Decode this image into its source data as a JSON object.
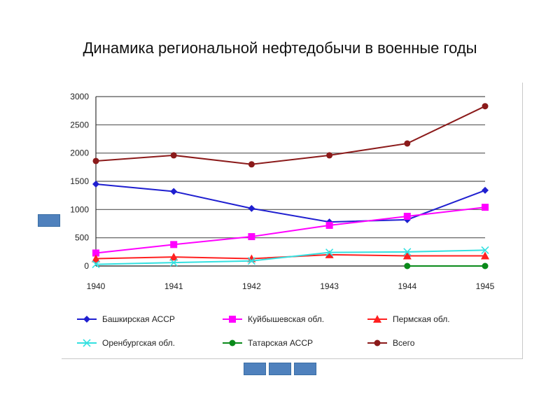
{
  "slide": {
    "title": "Динамика региональной нефтедобычи в военные годы"
  },
  "chart_data": {
    "type": "line",
    "title": "",
    "xlabel": "",
    "ylabel": "",
    "x": [
      "1940",
      "1941",
      "1942",
      "1943",
      "1944",
      "1945"
    ],
    "ylim": [
      0,
      3000
    ],
    "yticks": [
      0,
      500,
      1000,
      1500,
      2000,
      2500,
      3000
    ],
    "grid": true,
    "legend_position": "bottom",
    "series": [
      {
        "name": "Башкирская АССР",
        "color": "#1f1fd0",
        "marker": "diamond",
        "values": [
          1450,
          1320,
          1020,
          780,
          820,
          1340
        ]
      },
      {
        "name": "Куйбышевская обл.",
        "color": "#ff00ff",
        "marker": "square",
        "values": [
          230,
          380,
          520,
          720,
          880,
          1040
        ]
      },
      {
        "name": "Пермская обл.",
        "color": "#ff2020",
        "marker": "triangle",
        "values": [
          130,
          160,
          130,
          200,
          180,
          180
        ]
      },
      {
        "name": "Оренбургская обл.",
        "color": "#33e0e0",
        "marker": "x",
        "values": [
          30,
          60,
          90,
          240,
          250,
          280
        ]
      },
      {
        "name": "Татарская АССР",
        "color": "#0a8a1a",
        "marker": "circle",
        "values": [
          null,
          null,
          null,
          null,
          0,
          0
        ]
      },
      {
        "name": "Всего",
        "color": "#8b1a1a",
        "marker": "circle",
        "values": [
          1860,
          1960,
          1800,
          1960,
          2170,
          2830
        ]
      }
    ]
  }
}
